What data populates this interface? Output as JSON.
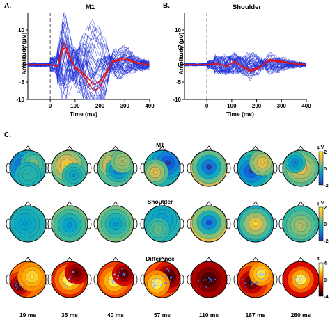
{
  "panels": {
    "a": {
      "letter": "A.",
      "title": "M1",
      "ylabel": "Amplitude (μV)",
      "xlabel": "Time (ms)",
      "yticks": [
        "10",
        "5",
        "0",
        "-5",
        "-10"
      ],
      "xticks": [
        "0",
        "100",
        "200",
        "300",
        "400"
      ]
    },
    "b": {
      "letter": "B.",
      "title": "Shoulder",
      "ylabel": "Amplitude (μV)",
      "xlabel": "Time (ms)",
      "yticks": [
        "10",
        "5",
        "0",
        "-5",
        "-10"
      ],
      "xticks": [
        "0",
        "100",
        "200",
        "300",
        "400"
      ]
    },
    "c": {
      "letter": "C.",
      "rows": [
        {
          "title": "M1",
          "unit": "μV",
          "cb_ticks": [
            "2",
            "0",
            "-2"
          ]
        },
        {
          "title": "Shoulder",
          "unit": "μV",
          "cb_ticks": [
            "2",
            "0",
            "-2"
          ]
        },
        {
          "title": "Difference",
          "unit": "t",
          "cb_ticks": [
            "4",
            "0",
            "-4"
          ]
        }
      ],
      "time_labels": [
        "19 ms",
        "35 ms",
        "40 ms",
        "57 ms",
        "110 ms",
        "187 ms",
        "280 ms"
      ]
    }
  },
  "colors": {
    "trace_blue": "#1f2fd6",
    "trace_red": "#e0151c",
    "cmap_parula": [
      "#352a87",
      "#0f5cdd",
      "#1481d6",
      "#06a4ca",
      "#2eb7a4",
      "#87bf77",
      "#d1bb59",
      "#fec832",
      "#f9fb0e"
    ],
    "cmap_hot": [
      "#000000",
      "#6b0000",
      "#d40000",
      "#ff5500",
      "#ffaa00",
      "#ffff60",
      "#ffffff"
    ]
  },
  "chart_data": [
    {
      "type": "line",
      "title": "M1",
      "xlabel": "Time (ms)",
      "ylabel": "Amplitude (μV)",
      "xlim": [
        -90,
        400
      ],
      "ylim": [
        -10,
        15
      ],
      "stimulus_line_x": 0,
      "series": [
        {
          "x": [
            -90,
            0,
            30,
            55,
            75,
            100,
            125,
            150,
            175,
            200,
            250,
            300,
            350,
            400
          ],
          "y": [
            0,
            0,
            -0.5,
            6.5,
            3,
            -1,
            -2.5,
            -5,
            -7.5,
            -6.5,
            1,
            2,
            0.5,
            0
          ]
        }
      ]
    },
    {
      "type": "line",
      "title": "Shoulder",
      "xlabel": "Time (ms)",
      "ylabel": "Amplitude (μV)",
      "xlim": [
        -90,
        400
      ],
      "ylim": [
        -10,
        15
      ],
      "stimulus_line_x": 0,
      "series": [
        {
          "x": [
            -90,
            0,
            40,
            80,
            110,
            140,
            175,
            210,
            250,
            300,
            350,
            400
          ],
          "y": [
            0,
            0,
            0.3,
            -0.5,
            1,
            -0.5,
            -2,
            -1,
            1.5,
            1,
            0.3,
            0
          ]
        }
      ]
    }
  ]
}
